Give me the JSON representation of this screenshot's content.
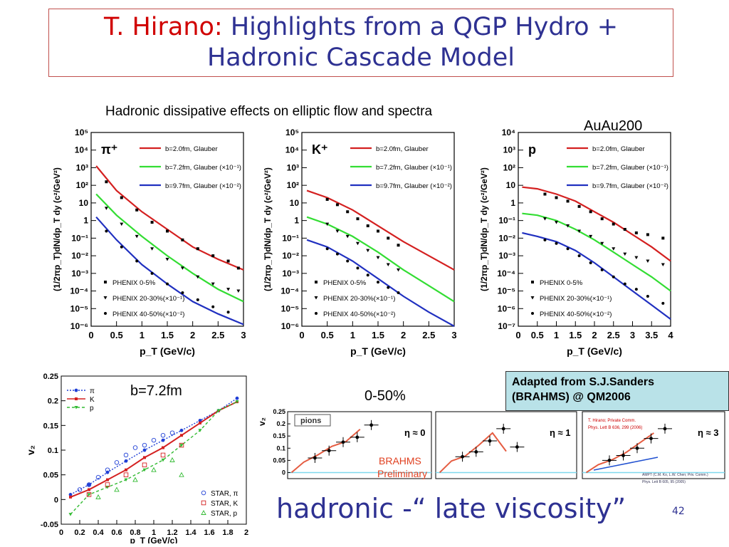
{
  "title": {
    "author": "T. Hirano:",
    "line1": "Highlights from a QGP Hydro +",
    "line2": "Hadronic Cascade Model"
  },
  "subtitle": "Hadronic dissipative effects on elliptic flow and spectra",
  "system_label": "AuAu200",
  "panel_b_label": "b=7.2fm",
  "centrality_label": "0-50%",
  "adapted_note": {
    "line1": "Adapted from S.J.Sanders",
    "line2": "(BRAHMS) @ QM2006"
  },
  "bottom_caption": "hadronic -“ late viscosity”",
  "page_number": "42",
  "colors": {
    "b20": "#d42020",
    "b72": "#33dd33",
    "b97": "#2030c0",
    "title_blue": "#2e3192",
    "title_red": "#d00000",
    "brahms": "#e04020"
  },
  "chart_data": [
    {
      "id": "pion-spectra",
      "type": "line",
      "particle": "π⁺",
      "ylabel": "(1/2πp_T)dN/dp_T dy (c²/GeV²)",
      "xlabel": "p_T (GeV/c)",
      "xlim": [
        0,
        3
      ],
      "ylim_log10": [
        -6,
        5
      ],
      "y_scale": "log",
      "x_ticks": [
        "0",
        "0.5",
        "1",
        "1.5",
        "2",
        "2.5",
        "3"
      ],
      "y_ticks": [
        "10⁻⁶",
        "10⁻⁵",
        "10⁻⁴",
        "10⁻³",
        "10⁻²",
        "10⁻¹",
        "1",
        "10",
        "10²",
        "10³",
        "10⁴",
        "10⁵"
      ],
      "legend_top": [
        "b=2.0fm, Glauber",
        "b=7.2fm, Glauber (×10⁻¹)",
        "b=9.7fm, Glauber (×10⁻²)"
      ],
      "legend_bottom": [
        "PHENIX 0-5%",
        "PHENIX 20-30%(×10⁻¹)",
        "PHENIX 40-50%(×10⁻²)"
      ],
      "curves": [
        {
          "name": "b=2.0fm, Glauber",
          "x": [
            0.1,
            0.5,
            1.0,
            1.5,
            2.0,
            2.5,
            3.0
          ],
          "y_log10": [
            3.1,
            1.7,
            0.5,
            -0.5,
            -1.5,
            -2.2,
            -2.8
          ]
        },
        {
          "name": "b=7.2fm, Glauber (×10⁻¹)",
          "x": [
            0.1,
            0.5,
            1.0,
            1.5,
            2.0,
            2.5,
            3.0
          ],
          "y_log10": [
            1.5,
            0.3,
            -0.9,
            -2.0,
            -3.0,
            -3.9,
            -4.6
          ]
        },
        {
          "name": "b=9.7fm, Glauber (×10⁻²)",
          "x": [
            0.1,
            0.5,
            1.0,
            1.5,
            2.0,
            2.5,
            3.0
          ],
          "y_log10": [
            0.2,
            -1.1,
            -2.5,
            -3.6,
            -4.6,
            -5.3,
            -5.9
          ]
        }
      ],
      "points": [
        {
          "name": "PHENIX 0-5%",
          "x": [
            0.3,
            0.6,
            0.9,
            1.2,
            1.5,
            1.8,
            2.1,
            2.4,
            2.7,
            2.9
          ],
          "y_log10": [
            2.2,
            1.3,
            0.6,
            -0.1,
            -0.6,
            -1.1,
            -1.6,
            -2.0,
            -2.3,
            -2.7
          ]
        },
        {
          "name": "PHENIX 20-30%(×10⁻¹)",
          "x": [
            0.3,
            0.6,
            0.9,
            1.2,
            1.5,
            1.8,
            2.1,
            2.4,
            2.7,
            2.9
          ],
          "y_log10": [
            0.7,
            -0.2,
            -0.9,
            -1.6,
            -2.2,
            -2.7,
            -3.2,
            -3.6,
            -3.9,
            -4.0
          ]
        },
        {
          "name": "PHENIX 40-50%(×10⁻²)",
          "x": [
            0.3,
            0.6,
            0.9,
            1.2,
            1.5,
            1.8,
            2.1,
            2.4,
            2.7
          ],
          "y_log10": [
            -0.6,
            -1.5,
            -2.3,
            -3.0,
            -3.6,
            -4.1,
            -4.5,
            -4.9,
            -5.2
          ]
        }
      ]
    },
    {
      "id": "kaon-spectra",
      "type": "line",
      "particle": "K⁺",
      "ylabel": "(1/2πp_T)dN/dp_T dy (c²/GeV²)",
      "xlabel": "p_T (GeV/c)",
      "xlim": [
        0,
        3
      ],
      "ylim_log10": [
        -6,
        5
      ],
      "y_scale": "log",
      "x_ticks": [
        "0",
        "0.5",
        "1",
        "1.5",
        "2",
        "2.5",
        "3"
      ],
      "y_ticks": [
        "10⁻⁶",
        "10⁻⁵",
        "10⁻⁴",
        "10⁻³",
        "10⁻²",
        "10⁻¹",
        "1",
        "10",
        "10²",
        "10³",
        "10⁴",
        "10⁵"
      ],
      "legend_top": [
        "b=2.0fm, Glauber",
        "b=7.2fm, Glauber (×10⁻¹)",
        "b=9.7fm, Glauber (×10⁻²)"
      ],
      "legend_bottom": [
        "PHENIX 0-5%",
        "PHENIX 20-30%(×10⁻¹)",
        "PHENIX 40-50%(×10⁻²)"
      ],
      "curves": [
        {
          "name": "b=2.0fm, Glauber",
          "x": [
            0.1,
            0.5,
            1.0,
            1.5,
            2.0,
            2.5,
            3.0
          ],
          "y_log10": [
            1.7,
            1.3,
            0.6,
            -0.3,
            -1.2,
            -2.0,
            -2.8
          ]
        },
        {
          "name": "b=7.2fm, Glauber (×10⁻¹)",
          "x": [
            0.1,
            0.5,
            1.0,
            1.5,
            2.0,
            2.5,
            3.0
          ],
          "y_log10": [
            0.2,
            -0.2,
            -0.9,
            -1.8,
            -2.8,
            -3.7,
            -4.6
          ]
        },
        {
          "name": "b=9.7fm, Glauber (×10⁻²)",
          "x": [
            0.1,
            0.5,
            1.0,
            1.5,
            2.0,
            2.5,
            3.0
          ],
          "y_log10": [
            -1.1,
            -1.5,
            -2.3,
            -3.3,
            -4.3,
            -5.2,
            -6.0
          ]
        }
      ],
      "points": [
        {
          "name": "PHENIX 0-5%",
          "x": [
            0.5,
            0.7,
            0.9,
            1.1,
            1.3,
            1.5,
            1.7,
            1.9
          ],
          "y_log10": [
            1.2,
            0.9,
            0.5,
            0.1,
            -0.3,
            -0.6,
            -1.0,
            -1.4
          ]
        },
        {
          "name": "PHENIX 20-30%(×10⁻¹)",
          "x": [
            0.5,
            0.7,
            0.9,
            1.1,
            1.3,
            1.5,
            1.7,
            1.9
          ],
          "y_log10": [
            -0.2,
            -0.6,
            -0.9,
            -1.3,
            -1.7,
            -2.1,
            -2.5,
            -2.8
          ]
        },
        {
          "name": "PHENIX 40-50%(×10⁻²)",
          "x": [
            0.5,
            0.7,
            0.9,
            1.1,
            1.3,
            1.5,
            1.7,
            1.9
          ],
          "y_log10": [
            -1.6,
            -1.9,
            -2.3,
            -2.7,
            -3.1,
            -3.5,
            -3.8,
            -4.1
          ]
        }
      ]
    },
    {
      "id": "proton-spectra",
      "type": "line",
      "particle": "p",
      "ylabel": "(1/2πp_T)dN/dp_T dy (c²/GeV²)",
      "xlabel": "p_T (GeV/c)",
      "xlim": [
        0,
        4
      ],
      "ylim_log10": [
        -7,
        4
      ],
      "y_scale": "log",
      "x_ticks": [
        "0",
        "0.5",
        "1",
        "1.5",
        "2",
        "2.5",
        "3",
        "3.5",
        "4"
      ],
      "y_ticks": [
        "10⁻⁷",
        "10⁻⁶",
        "10⁻⁵",
        "10⁻⁴",
        "10⁻³",
        "10⁻²",
        "10⁻¹",
        "1",
        "10",
        "10²",
        "10³",
        "10⁴"
      ],
      "legend_top": [
        "b=2.0fm, Glauber",
        "b=7.2fm, Glauber (×10⁻¹)",
        "b=9.7fm, Glauber (×10⁻²)"
      ],
      "legend_bottom": [
        "PHENIX 0-5%",
        "PHENIX 20-30%(×10⁻¹)",
        "PHENIX 40-50%(×10⁻²)"
      ],
      "curves": [
        {
          "name": "b=2.0fm, Glauber",
          "x": [
            0.1,
            0.5,
            1.0,
            1.5,
            2.0,
            2.5,
            3.0,
            3.5,
            4.0
          ],
          "y_log10": [
            0.9,
            0.8,
            0.5,
            0.1,
            -0.5,
            -1.1,
            -1.8,
            -2.5,
            -3.3
          ]
        },
        {
          "name": "b=7.2fm, Glauber (×10⁻¹)",
          "x": [
            0.1,
            0.5,
            1.0,
            1.5,
            2.0,
            2.5,
            3.0,
            3.5,
            4.0
          ],
          "y_log10": [
            -0.6,
            -0.7,
            -1.0,
            -1.5,
            -2.1,
            -2.8,
            -3.5,
            -4.2,
            -5.0
          ]
        },
        {
          "name": "b=9.7fm, Glauber (×10⁻²)",
          "x": [
            0.1,
            0.5,
            1.0,
            1.5,
            2.0,
            2.5,
            3.0,
            3.5,
            4.0
          ],
          "y_log10": [
            -1.7,
            -1.9,
            -2.2,
            -2.7,
            -3.4,
            -4.2,
            -5.0,
            -5.8,
            -6.6
          ]
        }
      ],
      "points": [
        {
          "name": "PHENIX 0-5%",
          "x": [
            0.7,
            1.0,
            1.3,
            1.6,
            1.9,
            2.2,
            2.5,
            2.8,
            3.1,
            3.4,
            3.8
          ],
          "y_log10": [
            0.5,
            0.3,
            0.1,
            -0.2,
            -0.5,
            -0.9,
            -1.2,
            -1.5,
            -1.7,
            -1.8,
            -2.0
          ]
        },
        {
          "name": "PHENIX 20-30%(×10⁻¹)",
          "x": [
            0.7,
            1.0,
            1.3,
            1.6,
            1.9,
            2.2,
            2.5,
            2.8,
            3.1,
            3.4,
            3.8
          ],
          "y_log10": [
            -0.9,
            -1.1,
            -1.3,
            -1.6,
            -1.9,
            -2.3,
            -2.6,
            -2.9,
            -3.1,
            -3.3,
            -3.5
          ]
        },
        {
          "name": "PHENIX 40-50%(×10⁻²)",
          "x": [
            0.7,
            1.0,
            1.3,
            1.6,
            1.9,
            2.2,
            2.5,
            2.8,
            3.1,
            3.4,
            3.8
          ],
          "y_log10": [
            -2.1,
            -2.3,
            -2.6,
            -3.0,
            -3.4,
            -3.8,
            -4.2,
            -4.6,
            -4.9,
            -5.3,
            -5.7
          ]
        }
      ]
    },
    {
      "id": "v2-vs-pt",
      "type": "line",
      "ylabel": "v₂",
      "xlabel": "p_T (GeV/c)",
      "xlim": [
        0,
        2
      ],
      "ylim": [
        -0.05,
        0.25
      ],
      "x_ticks": [
        "0",
        "0.2",
        "0.4",
        "0.6",
        "0.8",
        "1",
        "1.2",
        "1.4",
        "1.6",
        "1.8",
        "2"
      ],
      "y_ticks": [
        "-0.05",
        "0",
        "0.05",
        "0.1",
        "0.15",
        "0.2",
        "0.25"
      ],
      "series": [
        {
          "name": "π",
          "x": [
            0.1,
            0.3,
            0.5,
            0.7,
            0.9,
            1.1,
            1.3,
            1.5,
            1.7,
            1.9
          ],
          "y": [
            0.01,
            0.03,
            0.055,
            0.078,
            0.1,
            0.12,
            0.14,
            0.16,
            0.18,
            0.205
          ]
        },
        {
          "name": "K",
          "x": [
            0.1,
            0.3,
            0.5,
            0.7,
            0.9,
            1.1,
            1.3,
            1.5,
            1.7,
            1.9
          ],
          "y": [
            0.005,
            0.02,
            0.04,
            0.06,
            0.085,
            0.105,
            0.13,
            0.155,
            0.18,
            0.198
          ]
        },
        {
          "name": "p",
          "x": [
            0.1,
            0.3,
            0.5,
            0.7,
            0.9,
            1.1,
            1.3,
            1.5,
            1.7,
            1.9
          ],
          "y": [
            -0.03,
            0.01,
            0.025,
            0.04,
            0.06,
            0.08,
            0.11,
            0.14,
            0.18,
            0.198
          ]
        }
      ],
      "star_points": [
        {
          "name": "STAR, π",
          "x": [
            0.2,
            0.3,
            0.4,
            0.5,
            0.6,
            0.7,
            0.8,
            0.9,
            1.0,
            1.1,
            1.2
          ],
          "y": [
            0.02,
            0.03,
            0.045,
            0.06,
            0.075,
            0.09,
            0.105,
            0.11,
            0.12,
            0.13,
            0.135
          ]
        },
        {
          "name": "STAR, K",
          "x": [
            0.3,
            0.5,
            0.7,
            0.9,
            1.1,
            1.3
          ],
          "y": [
            0.01,
            0.03,
            0.05,
            0.07,
            0.09,
            0.11
          ]
        },
        {
          "name": "STAR, p",
          "x": [
            0.4,
            0.6,
            0.8,
            1.0,
            1.2,
            1.3
          ],
          "y": [
            0.005,
            0.02,
            0.04,
            0.06,
            0.08,
            0.05
          ]
        }
      ],
      "legend_top": [
        "π",
        "K",
        "p"
      ],
      "legend_bottom": [
        "STAR, π",
        "STAR, K",
        "STAR, p"
      ]
    },
    {
      "id": "brahms-v2-eta",
      "type": "scatter",
      "ylabel": "v₂",
      "ylim": [
        -0.025,
        0.25
      ],
      "y_ticks": [
        "0",
        "0.05",
        "0.1",
        "0.15",
        "0.2",
        "0.25"
      ],
      "panels": [
        {
          "label": "pions",
          "eta": "η ≈ 0",
          "points_x": [
            0.2,
            0.35,
            0.5,
            0.65,
            0.8
          ],
          "points_y": [
            0.06,
            0.09,
            0.125,
            0.145,
            0.195
          ]
        },
        {
          "label": "",
          "eta": "η ≈ 1",
          "points_x": [
            0.2,
            0.35,
            0.5,
            0.65,
            0.8
          ],
          "points_y": [
            0.065,
            0.085,
            0.13,
            0.18,
            0.105
          ]
        },
        {
          "label": "",
          "eta": "η ≈ 3",
          "points_x": [
            0.2,
            0.35,
            0.5,
            0.65,
            0.8
          ],
          "points_y": [
            0.05,
            0.07,
            0.1,
            0.14,
            0.18
          ]
        }
      ],
      "watermark": [
        "BRAHMS",
        "Preliminary"
      ],
      "notes_panel2": [
        "T. Hirano; Private Comm.",
        "Phys. Lett B 636, 299 (2006)"
      ],
      "notes_panel3": [
        "AMPT (C.M. Ko, L.W. Chen; Priv. Comm.)",
        "Phys. Lett B 605, 95 (2005)"
      ]
    }
  ]
}
